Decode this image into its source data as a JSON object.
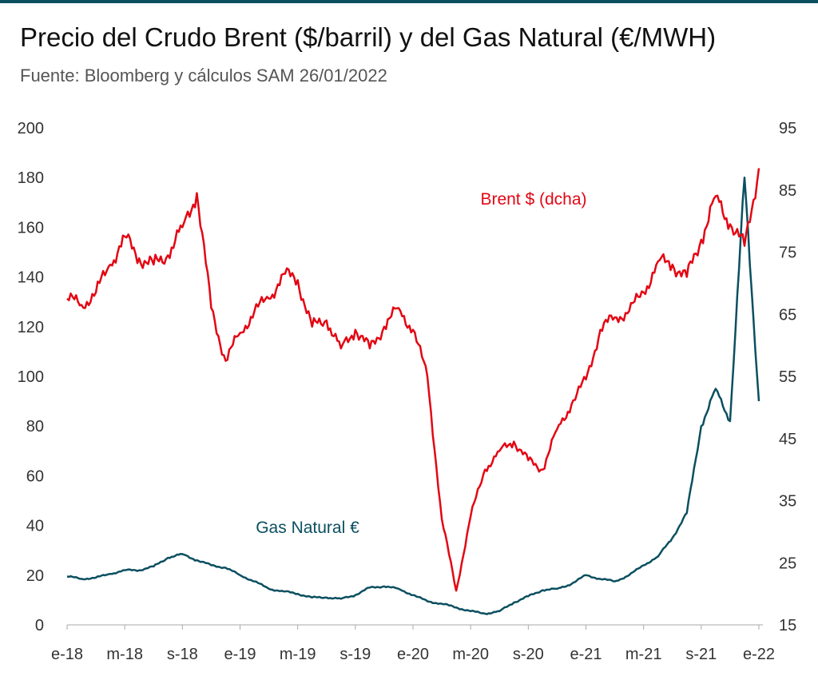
{
  "title": "Precio del Crudo Brent ($/barril) y del Gas Natural (€/MWH)",
  "subtitle": "Fuente: Bloomberg y cálculos SAM 26/01/2022",
  "colors": {
    "brent": "#e30613",
    "gas": "#0b4f60",
    "axis": "#aaaaaa",
    "rule": "#0b4f60"
  },
  "chart_data": {
    "type": "line",
    "x_axis": {
      "start": "2018-01",
      "end": "2022-01",
      "ticks": [
        {
          "date": "2018-01",
          "label": "e-18"
        },
        {
          "date": "2018-05",
          "label": "m-18"
        },
        {
          "date": "2018-09",
          "label": "s-18"
        },
        {
          "date": "2019-01",
          "label": "e-19"
        },
        {
          "date": "2019-05",
          "label": "m-19"
        },
        {
          "date": "2019-09",
          "label": "s-19"
        },
        {
          "date": "2020-01",
          "label": "e-20"
        },
        {
          "date": "2020-05",
          "label": "m-20"
        },
        {
          "date": "2020-09",
          "label": "s-20"
        },
        {
          "date": "2021-01",
          "label": "e-21"
        },
        {
          "date": "2021-05",
          "label": "m-21"
        },
        {
          "date": "2021-09",
          "label": "s-21"
        },
        {
          "date": "2022-01",
          "label": "e-22"
        }
      ]
    },
    "y_left": {
      "min": 0,
      "max": 200,
      "ticks": [
        0,
        20,
        40,
        60,
        80,
        100,
        120,
        140,
        160,
        180,
        200
      ]
    },
    "y_right": {
      "min": 15,
      "max": 95,
      "ticks": [
        15,
        25,
        35,
        45,
        55,
        65,
        75,
        85,
        95
      ]
    },
    "series": [
      {
        "name": "Brent $ (dcha)",
        "axis": "right",
        "points": [
          [
            "2018-01",
            67.5
          ],
          [
            "2018-02",
            66.5
          ],
          [
            "2018-03",
            68.5
          ],
          [
            "2018-04",
            73.0
          ],
          [
            "2018-05",
            77.5
          ],
          [
            "2018-06",
            74.0
          ],
          [
            "2018-07",
            73.0
          ],
          [
            "2018-08",
            74.5
          ],
          [
            "2018-09",
            79.0
          ],
          [
            "2018-10",
            84.5
          ],
          [
            "2018-11",
            66.0
          ],
          [
            "2018-12",
            57.5
          ],
          [
            "2019-01",
            62.0
          ],
          [
            "2019-02",
            65.5
          ],
          [
            "2019-03",
            67.5
          ],
          [
            "2019-04",
            71.5
          ],
          [
            "2019-05",
            70.5
          ],
          [
            "2019-06",
            63.0
          ],
          [
            "2019-07",
            64.0
          ],
          [
            "2019-08",
            59.5
          ],
          [
            "2019-09",
            62.5
          ],
          [
            "2019-10",
            59.5
          ],
          [
            "2019-11",
            63.0
          ],
          [
            "2019-12",
            66.0
          ],
          [
            "2020-01",
            62.5
          ],
          [
            "2020-02",
            55.0
          ],
          [
            "2020-03",
            32.0
          ],
          [
            "2020-04",
            20.5
          ],
          [
            "2020-05",
            32.5
          ],
          [
            "2020-06",
            40.0
          ],
          [
            "2020-07",
            43.0
          ],
          [
            "2020-08",
            44.5
          ],
          [
            "2020-09",
            41.5
          ],
          [
            "2020-10",
            40.0
          ],
          [
            "2020-11",
            46.5
          ],
          [
            "2020-12",
            50.5
          ],
          [
            "2021-01",
            54.5
          ],
          [
            "2021-02",
            62.5
          ],
          [
            "2021-03",
            64.5
          ],
          [
            "2021-04",
            65.5
          ],
          [
            "2021-05",
            68.5
          ],
          [
            "2021-06",
            73.5
          ],
          [
            "2021-07",
            73.0
          ],
          [
            "2021-08",
            71.0
          ],
          [
            "2021-09",
            77.0
          ],
          [
            "2021-10",
            84.0
          ],
          [
            "2021-11",
            79.5
          ],
          [
            "2021-12",
            76.0
          ],
          [
            "2022-01",
            88.5
          ]
        ]
      },
      {
        "name": "Gas Natural €",
        "axis": "left",
        "points": [
          [
            "2018-01",
            19.5
          ],
          [
            "2018-02",
            18.5
          ],
          [
            "2018-03",
            19.0
          ],
          [
            "2018-04",
            20.5
          ],
          [
            "2018-05",
            22.0
          ],
          [
            "2018-06",
            22.0
          ],
          [
            "2018-07",
            23.5
          ],
          [
            "2018-08",
            27.0
          ],
          [
            "2018-09",
            28.5
          ],
          [
            "2018-10",
            26.0
          ],
          [
            "2018-11",
            24.0
          ],
          [
            "2018-12",
            23.0
          ],
          [
            "2019-01",
            20.0
          ],
          [
            "2019-02",
            17.5
          ],
          [
            "2019-03",
            14.5
          ],
          [
            "2019-04",
            13.5
          ],
          [
            "2019-05",
            12.5
          ],
          [
            "2019-06",
            11.0
          ],
          [
            "2019-07",
            11.0
          ],
          [
            "2019-08",
            10.5
          ],
          [
            "2019-09",
            12.0
          ],
          [
            "2019-10",
            15.0
          ],
          [
            "2019-11",
            15.5
          ],
          [
            "2019-12",
            14.5
          ],
          [
            "2020-01",
            12.0
          ],
          [
            "2020-02",
            9.5
          ],
          [
            "2020-03",
            8.5
          ],
          [
            "2020-04",
            7.0
          ],
          [
            "2020-05",
            5.5
          ],
          [
            "2020-06",
            4.5
          ],
          [
            "2020-07",
            5.5
          ],
          [
            "2020-08",
            9.0
          ],
          [
            "2020-09",
            11.5
          ],
          [
            "2020-10",
            14.0
          ],
          [
            "2020-11",
            14.5
          ],
          [
            "2020-12",
            16.5
          ],
          [
            "2021-01",
            20.0
          ],
          [
            "2021-02",
            18.5
          ],
          [
            "2021-03",
            17.5
          ],
          [
            "2021-04",
            20.0
          ],
          [
            "2021-05",
            24.0
          ],
          [
            "2021-06",
            27.5
          ],
          [
            "2021-07",
            35.0
          ],
          [
            "2021-08",
            45.0
          ],
          [
            "2021-09",
            80.0
          ],
          [
            "2021-10",
            95.0
          ],
          [
            "2021-11",
            82.0
          ],
          [
            "2021-12",
            180.0
          ],
          [
            "2022-01",
            90.0
          ]
        ]
      }
    ],
    "annotations": [
      {
        "text": "Brent $ (dcha)",
        "series": "Brent $ (dcha)"
      },
      {
        "text": "Gas Natural €",
        "series": "Gas Natural €"
      }
    ],
    "grid": false
  }
}
